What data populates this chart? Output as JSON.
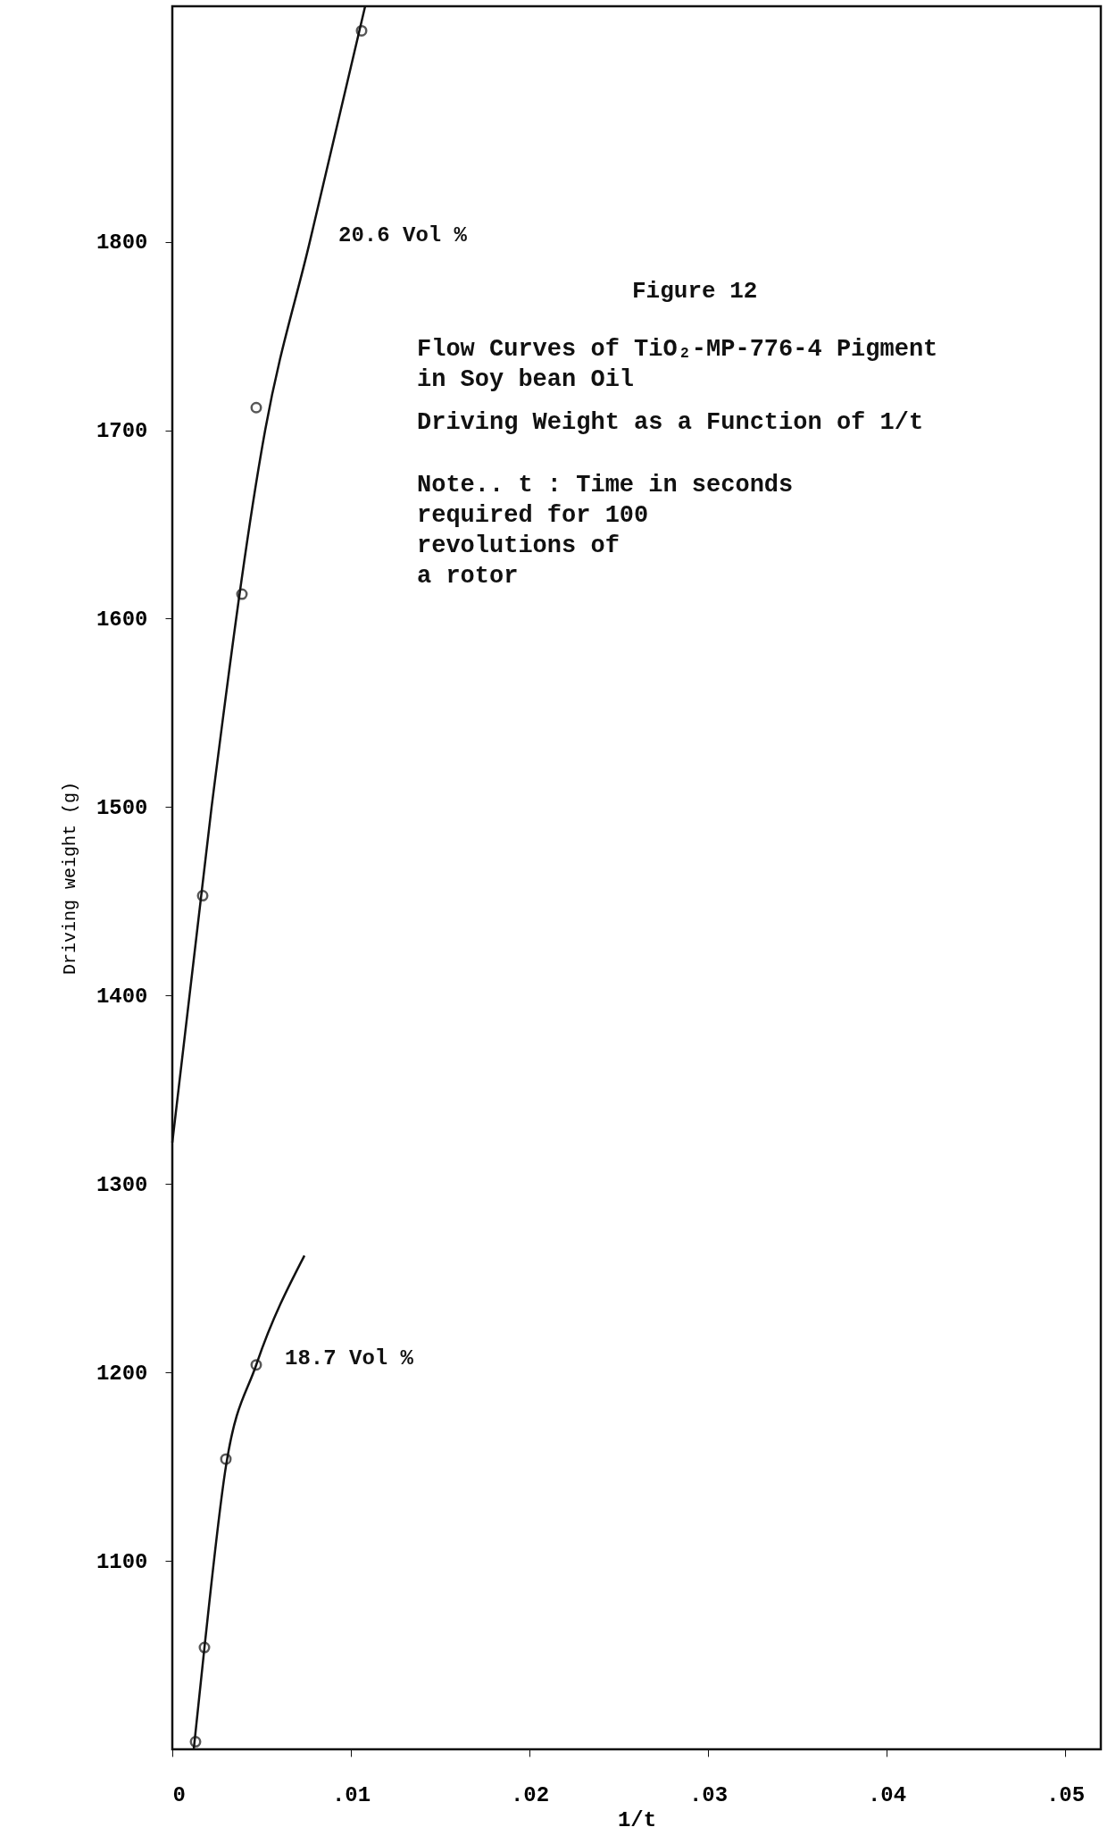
{
  "chart_data": {
    "type": "line",
    "title": "Figure 12",
    "subtitle": "Flow Curves of TiO₂-MP-776-4 Pigment\nin Soy bean Oil",
    "annotations": [
      "Driving Weight as a Function of 1/t",
      "Note.. t : Time in seconds\nrequired for 100\nrevolutions of\na rotor"
    ],
    "xlabel": "1/t",
    "ylabel": "Driving weight (g)",
    "xlim": [
      0,
      0.052
    ],
    "ylim": [
      1000,
      1925
    ],
    "xticks": [
      0,
      {
        "value": 0.01,
        "label": ".01"
      },
      {
        "value": 0.02,
        "label": ".02"
      },
      {
        "value": 0.03,
        "label": ".03"
      },
      {
        "value": 0.04,
        "label": ".04"
      },
      {
        "value": 0.05,
        "label": ".05"
      }
    ],
    "yticks": [
      1100,
      1200,
      1300,
      1400,
      1500,
      1600,
      1700,
      1800
    ],
    "series": [
      {
        "name": "20.6 Vol %",
        "color": "#111111",
        "x": [
          0,
          0.0022,
          0.0052,
          0.0077,
          0.0108
        ],
        "values": [
          1322,
          1500,
          1700,
          1800,
          1925
        ]
      },
      {
        "type": "scatter",
        "color": "#111111",
        "marker": "circle",
        "x": [
          0.0017,
          0.0039,
          0.0047,
          0.0106
        ],
        "values": [
          1453,
          1613,
          1712,
          1912
        ]
      },
      {
        "name": "18.7 Vol %",
        "color": "#111111",
        "x": [
          0.0012,
          0.0018,
          0.003,
          0.0047,
          0.0074
        ],
        "values": [
          1000,
          1054,
          1150,
          1204,
          1262
        ]
      },
      {
        "type": "scatter",
        "color": "#111111",
        "marker": "circle",
        "x": [
          0.0013,
          0.0018,
          0.003,
          0.0047
        ],
        "values": [
          1004,
          1054,
          1154,
          1204
        ]
      }
    ]
  }
}
